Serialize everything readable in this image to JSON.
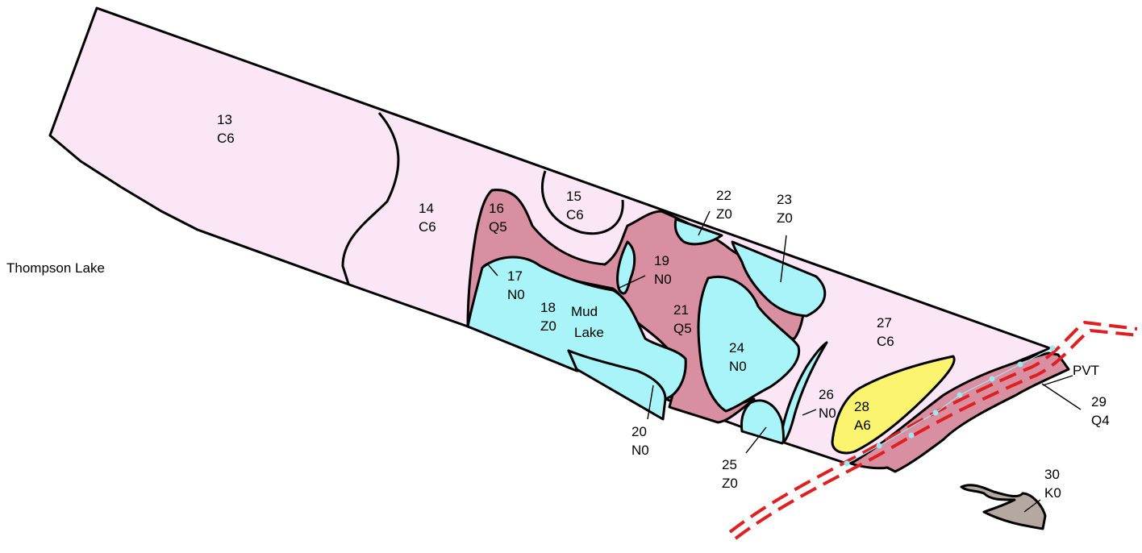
{
  "map": {
    "outside_labels": {
      "thompson_lake": "Thompson Lake",
      "mud_lake_1": "Mud",
      "mud_lake_2": "Lake",
      "pvt": "PVT"
    },
    "parcels": [
      {
        "id": "13",
        "code": "C6"
      },
      {
        "id": "14",
        "code": "C6"
      },
      {
        "id": "15",
        "code": "C6"
      },
      {
        "id": "16",
        "code": "Q5"
      },
      {
        "id": "17",
        "code": "N0"
      },
      {
        "id": "18",
        "code": "Z0"
      },
      {
        "id": "19",
        "code": "N0"
      },
      {
        "id": "20",
        "code": "N0"
      },
      {
        "id": "21",
        "code": "Q5"
      },
      {
        "id": "22",
        "code": "Z0"
      },
      {
        "id": "23",
        "code": "Z0"
      },
      {
        "id": "24",
        "code": "N0"
      },
      {
        "id": "25",
        "code": "Z0"
      },
      {
        "id": "26",
        "code": "N0"
      },
      {
        "id": "27",
        "code": "C6"
      },
      {
        "id": "28",
        "code": "A6"
      },
      {
        "id": "29",
        "code": "Q4"
      },
      {
        "id": "30",
        "code": "K0"
      }
    ],
    "colors": {
      "upland_pink": "#FAE6F5",
      "wetland_rose": "#D98FA2",
      "water_cyan": "#A8F4F8",
      "yellow": "#FAF46E",
      "brown": "#B5A8A0",
      "road_red": "#E02020"
    }
  }
}
